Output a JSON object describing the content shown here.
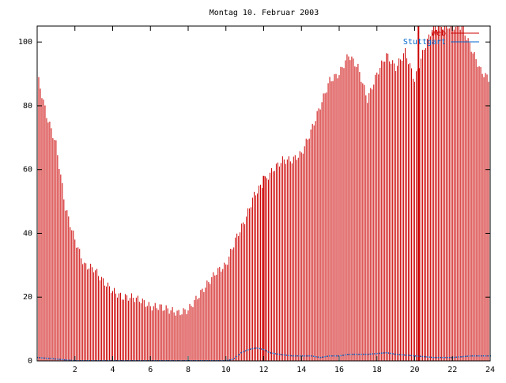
{
  "chart_data": {
    "type": "bar",
    "title": "Montag 10. Februar 2003",
    "xlabel": "",
    "ylabel": "",
    "xlim": [
      0,
      24
    ],
    "ylim": [
      0,
      105
    ],
    "xticks": [
      {
        "value": 2,
        "label": "2"
      },
      {
        "value": 4,
        "label": "4"
      },
      {
        "value": 6,
        "label": "6"
      },
      {
        "value": 8,
        "label": "8"
      },
      {
        "value": 10,
        "label": "10"
      },
      {
        "value": 12,
        "label": "12"
      },
      {
        "value": 14,
        "label": "14"
      },
      {
        "value": 16,
        "label": "16"
      },
      {
        "value": 18,
        "label": "18"
      },
      {
        "value": 20,
        "label": "20"
      },
      {
        "value": 22,
        "label": "22"
      },
      {
        "value": 24,
        "label": "24"
      }
    ],
    "yticks": [
      {
        "value": 0,
        "label": "0"
      },
      {
        "value": 20,
        "label": "20"
      },
      {
        "value": 40,
        "label": "40"
      },
      {
        "value": 60,
        "label": "60"
      },
      {
        "value": 80,
        "label": "80"
      },
      {
        "value": 100,
        "label": "100"
      }
    ],
    "grid": false,
    "legend_position": "top-right",
    "series": [
      {
        "name": "Web",
        "color": "#cc0000",
        "style": "impulses",
        "points": [
          [
            0.0,
            90
          ],
          [
            0.5,
            77
          ],
          [
            1.0,
            68
          ],
          [
            1.5,
            48
          ],
          [
            2.0,
            38
          ],
          [
            2.5,
            30
          ],
          [
            3.0,
            29
          ],
          [
            3.5,
            25
          ],
          [
            4.0,
            22
          ],
          [
            4.5,
            20
          ],
          [
            5.0,
            20
          ],
          [
            5.5,
            19
          ],
          [
            6.0,
            17
          ],
          [
            6.5,
            17
          ],
          [
            7.0,
            16
          ],
          [
            7.5,
            15
          ],
          [
            8.0,
            16
          ],
          [
            8.5,
            20
          ],
          [
            9.0,
            24
          ],
          [
            9.5,
            28
          ],
          [
            10.0,
            30
          ],
          [
            10.5,
            38
          ],
          [
            11.0,
            44
          ],
          [
            11.5,
            52
          ],
          [
            12.0,
            56
          ],
          [
            12.5,
            60
          ],
          [
            13.0,
            63
          ],
          [
            13.5,
            63
          ],
          [
            14.0,
            65
          ],
          [
            14.5,
            72
          ],
          [
            15.0,
            80
          ],
          [
            15.5,
            88
          ],
          [
            16.0,
            90
          ],
          [
            16.5,
            96
          ],
          [
            17.0,
            92
          ],
          [
            17.5,
            82
          ],
          [
            18.0,
            90
          ],
          [
            18.5,
            96
          ],
          [
            19.0,
            92
          ],
          [
            19.5,
            97
          ],
          [
            20.0,
            88
          ],
          [
            20.5,
            98
          ],
          [
            21.0,
            105
          ],
          [
            21.5,
            105
          ],
          [
            22.0,
            105
          ],
          [
            22.5,
            105
          ],
          [
            23.0,
            98
          ],
          [
            23.5,
            91
          ],
          [
            24.0,
            88
          ]
        ],
        "spikes": [
          {
            "x": 12.0,
            "y": 58
          },
          {
            "x": 20.2,
            "y": 105
          }
        ]
      },
      {
        "name": "Stuttgart",
        "color": "#0066cc",
        "style": "points",
        "points": [
          [
            0.0,
            1
          ],
          [
            2.0,
            0
          ],
          [
            4.0,
            0
          ],
          [
            6.0,
            0
          ],
          [
            8.0,
            0
          ],
          [
            10.0,
            0
          ],
          [
            10.4,
            0.5
          ],
          [
            10.8,
            2.5
          ],
          [
            11.2,
            3.5
          ],
          [
            11.6,
            4
          ],
          [
            12.0,
            3.5
          ],
          [
            12.3,
            2.5
          ],
          [
            12.8,
            2
          ],
          [
            13.5,
            1.5
          ],
          [
            14.5,
            1.5
          ],
          [
            15.0,
            1
          ],
          [
            15.5,
            1.5
          ],
          [
            16.0,
            1.5
          ],
          [
            16.5,
            2
          ],
          [
            17.5,
            2
          ],
          [
            18.5,
            2.5
          ],
          [
            19.0,
            2
          ],
          [
            20.0,
            1.5
          ],
          [
            21.0,
            1
          ],
          [
            22.0,
            1
          ],
          [
            23.0,
            1.5
          ],
          [
            24.0,
            1.5
          ]
        ]
      }
    ]
  }
}
